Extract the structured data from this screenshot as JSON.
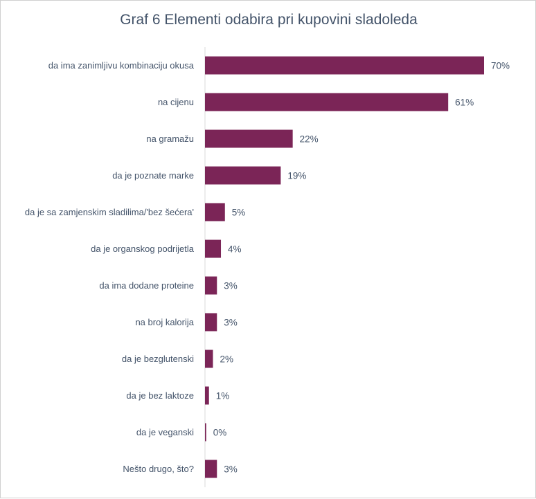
{
  "chart_data": {
    "type": "bar",
    "orientation": "horizontal",
    "title": "Graf 6 Elementi odabira pri kupovini sladoleda",
    "categories": [
      "da ima zanimljivu kombinaciju okusa",
      "na cijenu",
      "na gramažu",
      "da je poznate marke",
      "da je sa zamjenskim sladilima/'bez šećera'",
      "da je organskog podrijetla",
      "da ima dodane proteine",
      "na broj kalorija",
      "da je bezglutenski",
      "da je bez laktoze",
      "da je veganski",
      "Nešto drugo, što?"
    ],
    "values": [
      70,
      61,
      22,
      19,
      5,
      4,
      3,
      3,
      2,
      1,
      0.3,
      3
    ],
    "value_labels": [
      "70%",
      "61%",
      "22%",
      "19%",
      "5%",
      "4%",
      "3%",
      "3%",
      "2%",
      "1%",
      "0%",
      "3%"
    ],
    "xlim": [
      0,
      70
    ],
    "grid": false,
    "legend": "none",
    "bar_color": "#7b2557",
    "axis_color": "#d9d9d9",
    "text_color": "#44546a"
  }
}
